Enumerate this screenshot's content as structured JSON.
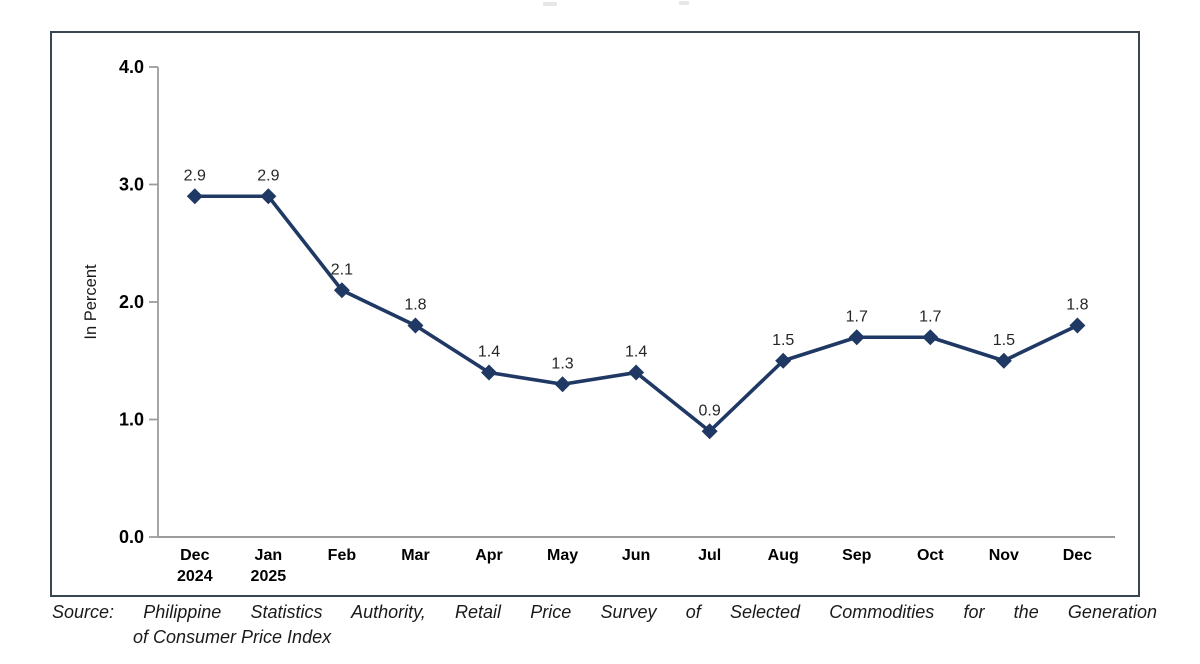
{
  "page": {
    "background": "#ffffff",
    "box_border_color": "#37474f"
  },
  "chart_data": {
    "type": "line",
    "ylabel": "In Percent",
    "ylim": [
      0,
      4
    ],
    "ytick_step": 1.0,
    "yticks": [
      "0.0",
      "1.0",
      "2.0",
      "3.0",
      "4.0"
    ],
    "grid": false,
    "legend": "none",
    "categories": [
      {
        "label": "Dec",
        "sublabel": "2024"
      },
      {
        "label": "Jan",
        "sublabel": "2025"
      },
      {
        "label": "Feb",
        "sublabel": ""
      },
      {
        "label": "Mar",
        "sublabel": ""
      },
      {
        "label": "Apr",
        "sublabel": ""
      },
      {
        "label": "May",
        "sublabel": ""
      },
      {
        "label": "Jun",
        "sublabel": ""
      },
      {
        "label": "Jul",
        "sublabel": ""
      },
      {
        "label": "Aug",
        "sublabel": ""
      },
      {
        "label": "Sep",
        "sublabel": ""
      },
      {
        "label": "Oct",
        "sublabel": ""
      },
      {
        "label": "Nov",
        "sublabel": ""
      },
      {
        "label": "Dec",
        "sublabel": ""
      }
    ],
    "series": [
      {
        "values": [
          2.9,
          2.9,
          2.1,
          1.8,
          1.4,
          1.3,
          1.4,
          0.9,
          1.5,
          1.7,
          1.7,
          1.5,
          1.8
        ],
        "color": "#1F3864",
        "marker": "diamond",
        "value_labels_shown": true
      }
    ],
    "axis_color": "#9c9c9c",
    "tick_label_color": "#000000",
    "data_label_color": "#262626"
  },
  "source_note": {
    "line1": "Source: Philippine Statistics Authority, Retail Price Survey of Selected Commodities for the Generation",
    "line2": "of Consumer Price Index"
  }
}
